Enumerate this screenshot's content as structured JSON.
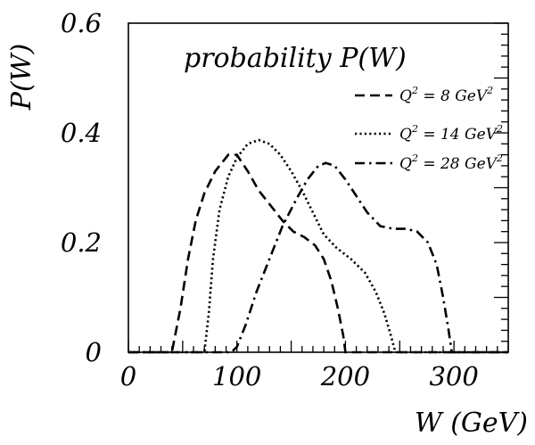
{
  "chart_data": {
    "type": "line",
    "title": "probability P(W)",
    "xlabel": "W (GeV)",
    "ylabel": "P(W)",
    "xlim": [
      0,
      350
    ],
    "ylim": [
      0,
      0.6
    ],
    "x_ticks": [
      "0",
      "100",
      "200",
      "300"
    ],
    "y_ticks": [
      "0",
      "0.2",
      "0.4",
      "0.6"
    ],
    "grid": false,
    "legend_position": "top-right",
    "series": [
      {
        "name": "Q² = 8 GeV²",
        "legend": {
          "q": "Q",
          "eq": " = 8 GeV"
        },
        "dash": "dashed",
        "points": [
          [
            0,
            0
          ],
          [
            40,
            0
          ],
          [
            48,
            0.08
          ],
          [
            55,
            0.17
          ],
          [
            62,
            0.24
          ],
          [
            70,
            0.29
          ],
          [
            80,
            0.33
          ],
          [
            92,
            0.36
          ],
          [
            100,
            0.36
          ],
          [
            110,
            0.33
          ],
          [
            120,
            0.295
          ],
          [
            132,
            0.265
          ],
          [
            142,
            0.24
          ],
          [
            152,
            0.22
          ],
          [
            162,
            0.21
          ],
          [
            172,
            0.195
          ],
          [
            180,
            0.17
          ],
          [
            187,
            0.13
          ],
          [
            193,
            0.08
          ],
          [
            198,
            0.03
          ],
          [
            200,
            0
          ],
          [
            350,
            0
          ]
        ]
      },
      {
        "name": "Q² = 14 GeV²",
        "legend": {
          "q": "Q",
          "eq": " = 14 GeV"
        },
        "dash": "dotted",
        "points": [
          [
            0,
            0
          ],
          [
            70,
            0
          ],
          [
            74,
            0.07
          ],
          [
            78,
            0.17
          ],
          [
            84,
            0.26
          ],
          [
            92,
            0.32
          ],
          [
            100,
            0.355
          ],
          [
            110,
            0.38
          ],
          [
            120,
            0.387
          ],
          [
            130,
            0.38
          ],
          [
            140,
            0.36
          ],
          [
            150,
            0.33
          ],
          [
            160,
            0.295
          ],
          [
            170,
            0.255
          ],
          [
            180,
            0.215
          ],
          [
            192,
            0.19
          ],
          [
            205,
            0.17
          ],
          [
            218,
            0.145
          ],
          [
            228,
            0.11
          ],
          [
            236,
            0.07
          ],
          [
            242,
            0.03
          ],
          [
            246,
            0
          ],
          [
            350,
            0
          ]
        ]
      },
      {
        "name": "Q² = 28 GeV²",
        "legend": {
          "q": "Q",
          "eq": " = 28 GeV"
        },
        "dash": "dashdot",
        "points": [
          [
            0,
            0
          ],
          [
            95,
            0
          ],
          [
            100,
            0.01
          ],
          [
            108,
            0.05
          ],
          [
            118,
            0.11
          ],
          [
            130,
            0.17
          ],
          [
            142,
            0.23
          ],
          [
            155,
            0.28
          ],
          [
            165,
            0.315
          ],
          [
            175,
            0.34
          ],
          [
            182,
            0.345
          ],
          [
            190,
            0.34
          ],
          [
            200,
            0.315
          ],
          [
            210,
            0.285
          ],
          [
            220,
            0.255
          ],
          [
            232,
            0.23
          ],
          [
            244,
            0.225
          ],
          [
            256,
            0.225
          ],
          [
            266,
            0.22
          ],
          [
            276,
            0.2
          ],
          [
            284,
            0.16
          ],
          [
            290,
            0.1
          ],
          [
            295,
            0.04
          ],
          [
            298,
            0
          ],
          [
            350,
            0
          ]
        ]
      }
    ]
  }
}
